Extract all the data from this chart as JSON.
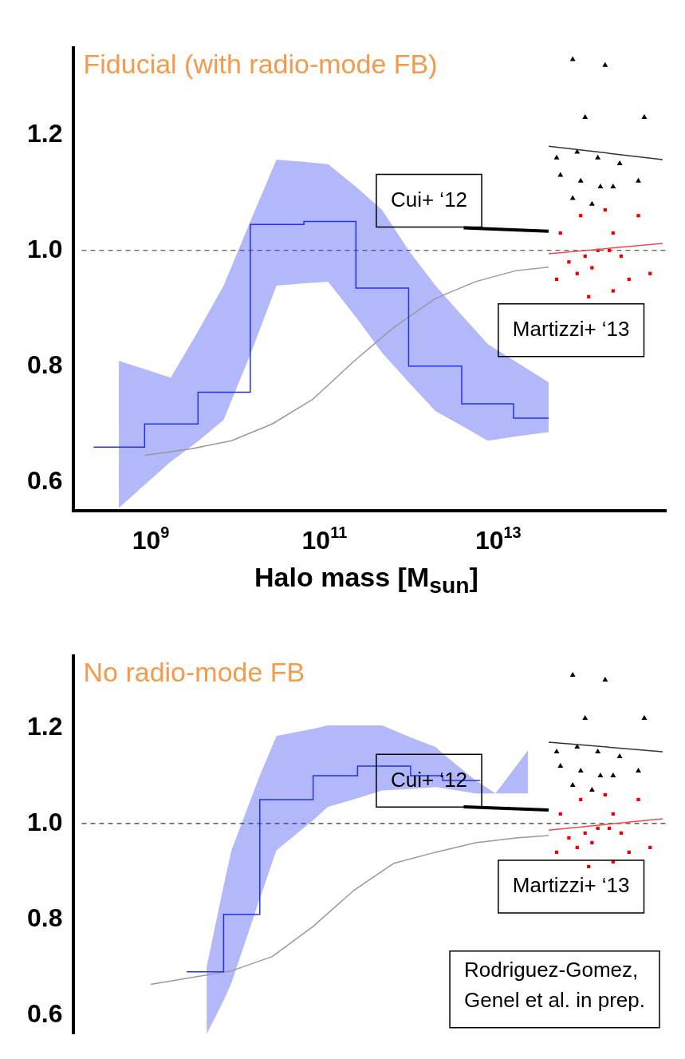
{
  "chart_data": [
    {
      "type": "step",
      "xlabel": "Halo mass [M$_{sun}$]",
      "log": "x",
      "xlim": [
        130000000.0,
        850000000000000.0
      ],
      "ylim": [
        0.55,
        1.35
      ],
      "xticks": [
        {
          "value": 1000000000.0,
          "label": "10$^{9}$"
        },
        {
          "value": 100000000000.0,
          "label": "10$^{11}$"
        },
        {
          "value": 10000000000000.0,
          "label": "10$^{13}$"
        }
      ],
      "yticks": [
        0.6,
        0.8,
        {
          "value": 1,
          "label": "1.0"
        },
        1.2
      ],
      "grid": false,
      "legend": false,
      "annotations": [
        "Fiducial (with radio-mode FB)",
        "Cui+ ‘12",
        "Martizzi+ ‘13"
      ],
      "ref_lines": [
        {
          "axis": "y",
          "value": 1,
          "line_style": "dashed",
          "color": "#333333"
        }
      ],
      "series": [
        {
          "color": "#2233ee",
          "x": [
            220000000.0,
            430000000.0,
            850000000.0,
            1700000000.0,
            3500000000.0,
            6900000000.0,
            14000000000.0,
            28000000000.0,
            58000000000.0,
            110000000000.0,
            230000000000.0,
            460000000000.0,
            930000000000.0,
            1900000000000.0,
            3800000000000.0,
            7600000000000.0,
            15000000000000.0,
            38000000000000.0
          ],
          "values": [
            0.66,
            0.66,
            0.7,
            0.7,
            0.755,
            0.755,
            1.045,
            1.045,
            1.05,
            1.05,
            0.935,
            0.935,
            0.8,
            0.8,
            0.735,
            0.735,
            0.71,
            0.71
          ],
          "lower": [
            null,
            0.555,
            0.595,
            0.635,
            0.67,
            0.707,
            0.82,
            0.939,
            0.943,
            0.946,
            0.885,
            0.823,
            0.772,
            0.722,
            0.697,
            0.671,
            0.678,
            0.686
          ],
          "upper": [
            null,
            0.809,
            0.795,
            0.78,
            0.86,
            0.939,
            1.05,
            1.157,
            1.153,
            1.149,
            1.11,
            1.07,
            1.0,
            0.939,
            0.888,
            0.838,
            0.81,
            0.772
          ]
        },
        {
          "type": "line",
          "color": "#999999",
          "x": [
            850000000.0,
            2900000000.0,
            8500000000.0,
            25000000000.0,
            74000000000.0,
            220000000000.0,
            630000000000.0,
            1900000000000.0,
            5500000000000.0,
            16000000000000.0,
            38000000000000.0
          ],
          "values": [
            0.646,
            0.657,
            0.671,
            0.7,
            0.743,
            0.809,
            0.867,
            0.917,
            0.946,
            0.965,
            0.971
          ]
        },
        {
          "type": "line",
          "color": "#000000",
          "x": [
            4000000000000.0,
            38000000000000.0
          ],
          "values": [
            1.039,
            1.033
          ]
        },
        {
          "type": "line",
          "color": "#333333",
          "x": [
            38000000000000.0,
            780000000000000.0
          ],
          "values": [
            1.18,
            1.157
          ]
        },
        {
          "type": "line",
          "color": "#ff4444",
          "x": [
            38000000000000.0,
            780000000000000.0
          ],
          "values": [
            0.994,
            1.012
          ]
        },
        {
          "type": "scatter",
          "marker": "triangle",
          "color": "#000000",
          "x": [
            72000000000000.0,
            170000000000000.0,
            100000000000000.0,
            480000000000000.0,
            47000000000000.0,
            81000000000000.0,
            140000000000000.0,
            250000000000000.0,
            52000000000000.0,
            89000000000000.0,
            150000000000000.0,
            410000000000000.0,
            72000000000000.0,
            120000000000000.0,
            210000000000000.0
          ],
          "values": [
            1.33,
            1.32,
            1.23,
            1.23,
            1.16,
            1.17,
            1.16,
            1.15,
            1.13,
            1.12,
            1.11,
            1.12,
            1.09,
            1.08,
            1.11
          ]
        },
        {
          "type": "scatter",
          "marker": "square",
          "color": "#ee0000",
          "x": [
            52000000000000.0,
            89000000000000.0,
            170000000000000.0,
            210000000000000.0,
            410000000000000.0,
            65000000000000.0,
            100000000000000.0,
            140000000000000.0,
            190000000000000.0,
            260000000000000.0,
            47000000000000.0,
            81000000000000.0,
            120000000000000.0,
            210000000000000.0,
            320000000000000.0,
            560000000000000.0,
            110000000000000.0
          ],
          "values": [
            1.03,
            1.06,
            1.07,
            1.03,
            1.06,
            0.98,
            0.99,
            1,
            1,
            0.99,
            0.95,
            0.96,
            0.97,
            0.93,
            0.95,
            0.96,
            0.92
          ]
        }
      ]
    },
    {
      "type": "step",
      "log": "x",
      "xlim": [
        130000000.0,
        850000000000000.0
      ],
      "ylim": [
        0.56,
        1.35
      ],
      "tick_labels": "y",
      "yticks": [
        0.6,
        0.8,
        {
          "value": 1,
          "label": "1.0"
        },
        1.2
      ],
      "grid": false,
      "legend": false,
      "annotations": [
        "No radio-mode FB",
        "Cui+ ‘12",
        "Martizzi+ ‘13",
        "Rodriguez-Gomez, Genel et al. in prep."
      ],
      "ref_lines": [
        {
          "axis": "y",
          "value": 1,
          "line_style": "dashed",
          "color": "#333333"
        }
      ],
      "series": [
        {
          "color": "#2233ee",
          "x": [
            2600000000.0,
            4400000000.0,
            6900000000.0,
            8500000000.0,
            18000000000.0,
            28000000000.0,
            74000000000.0,
            110000000000.0,
            240000000000.0,
            460000000000.0,
            980000000000.0,
            1900000000000.0,
            2300000000000.0,
            5500000000000.0,
            6200000000000.0,
            9300000000000.0,
            22000000000000.0
          ],
          "values": [
            0.69,
            0.69,
            0.81,
            0.81,
            1.05,
            1.05,
            1.1,
            1.1,
            1.12,
            1.12,
            1.1,
            1.1,
            1.09,
            1.09,
            1.09,
            null,
            null
          ],
          "lower": [
            null,
            0.56,
            0.63,
            0.667,
            0.843,
            0.944,
            1.007,
            1.035,
            1.053,
            1.069,
            1.072,
            1.076,
            1.074,
            1.063,
            1.063,
            1.063,
            1.063
          ],
          "upper": [
            null,
            0.7,
            0.87,
            0.944,
            1.1,
            1.183,
            1.198,
            1.205,
            1.205,
            1.205,
            1.18,
            1.16,
            1.146,
            1.09,
            1.084,
            1.063,
            1.153
          ]
        },
        {
          "type": "line",
          "color": "#999999",
          "x": [
            1000000000.0,
            8500000000.0,
            25000000000.0,
            74000000000.0,
            220000000000.0,
            630000000000.0,
            1900000000000.0,
            5500000000000.0,
            16000000000000.0,
            38000000000000.0
          ],
          "values": [
            0.664,
            0.692,
            0.722,
            0.785,
            0.861,
            0.917,
            0.94,
            0.96,
            0.97,
            0.975
          ]
        },
        {
          "type": "line",
          "color": "#000000",
          "x": [
            4000000000000.0,
            38000000000000.0
          ],
          "values": [
            1.035,
            1.028
          ]
        },
        {
          "type": "line",
          "color": "#333333",
          "x": [
            38000000000000.0,
            780000000000000.0
          ],
          "values": [
            1.17,
            1.15
          ]
        },
        {
          "type": "line",
          "color": "#ff4444",
          "x": [
            38000000000000.0,
            780000000000000.0
          ],
          "values": [
            0.986,
            1.01
          ]
        },
        {
          "type": "scatter",
          "marker": "triangle",
          "color": "#000000",
          "x": [
            72000000000000.0,
            170000000000000.0,
            100000000000000.0,
            480000000000000.0,
            47000000000000.0,
            81000000000000.0,
            140000000000000.0,
            250000000000000.0,
            52000000000000.0,
            89000000000000.0,
            150000000000000.0,
            410000000000000.0,
            72000000000000.0,
            120000000000000.0,
            210000000000000.0
          ],
          "values": [
            1.31,
            1.3,
            1.22,
            1.22,
            1.15,
            1.16,
            1.15,
            1.14,
            1.12,
            1.11,
            1.1,
            1.11,
            1.08,
            1.07,
            1.1
          ]
        },
        {
          "type": "scatter",
          "marker": "square",
          "color": "#ee0000",
          "x": [
            52000000000000.0,
            89000000000000.0,
            170000000000000.0,
            210000000000000.0,
            410000000000000.0,
            65000000000000.0,
            100000000000000.0,
            140000000000000.0,
            190000000000000.0,
            260000000000000.0,
            47000000000000.0,
            81000000000000.0,
            120000000000000.0,
            210000000000000.0,
            320000000000000.0,
            560000000000000.0,
            110000000000000.0
          ],
          "values": [
            1.02,
            1.05,
            1.06,
            1.02,
            1.05,
            0.97,
            0.98,
            0.99,
            0.99,
            0.98,
            0.94,
            0.95,
            0.96,
            0.92,
            0.94,
            0.95,
            0.91
          ]
        }
      ]
    }
  ]
}
